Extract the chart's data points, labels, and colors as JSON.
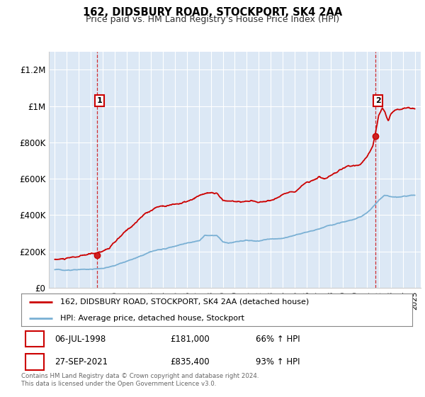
{
  "title": "162, DIDSBURY ROAD, STOCKPORT, SK4 2AA",
  "subtitle": "Price paid vs. HM Land Registry's House Price Index (HPI)",
  "ylabel_ticks": [
    "£0",
    "£200K",
    "£400K",
    "£600K",
    "£800K",
    "£1M",
    "£1.2M"
  ],
  "ytick_values": [
    0,
    200000,
    400000,
    600000,
    800000,
    1000000,
    1200000
  ],
  "ylim": [
    0,
    1300000
  ],
  "xlim_start": 1994.5,
  "xlim_end": 2025.5,
  "background_color": "#ffffff",
  "plot_bg_color": "#dce8f5",
  "grid_color": "#ffffff",
  "red_line_color": "#cc0000",
  "blue_line_color": "#7ab0d4",
  "ann1_x": 1998.51,
  "ann1_y": 181000,
  "ann2_x": 2021.74,
  "ann2_y": 835400,
  "legend_line1": "162, DIDSBURY ROAD, STOCKPORT, SK4 2AA (detached house)",
  "legend_line2": "HPI: Average price, detached house, Stockport",
  "footer": "Contains HM Land Registry data © Crown copyright and database right 2024.\nThis data is licensed under the Open Government Licence v3.0.",
  "table_row1": [
    "1",
    "06-JUL-1998",
    "£181,000",
    "66% ↑ HPI"
  ],
  "table_row2": [
    "2",
    "27-SEP-2021",
    "£835,400",
    "93% ↑ HPI"
  ]
}
